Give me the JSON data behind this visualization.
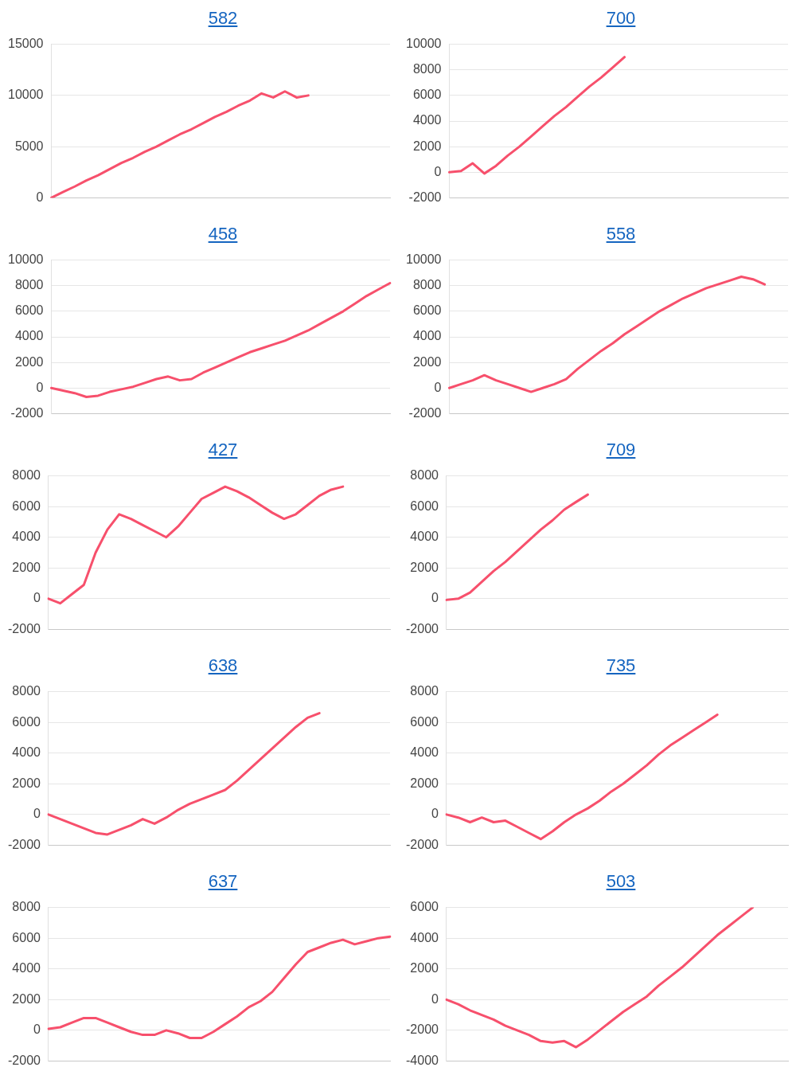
{
  "chart_data": [
    {
      "type": "line",
      "title": "582",
      "categories": [
        null,
        null,
        null,
        null,
        null,
        null,
        null,
        null,
        null,
        null,
        null,
        null,
        null,
        null,
        null,
        null,
        null,
        null,
        null,
        null,
        null,
        null,
        null,
        null,
        null,
        null,
        null,
        null,
        null,
        null
      ],
      "series": [
        {
          "color": "#f7506c",
          "values": [
            0,
            560,
            1100,
            1700,
            2200,
            2800,
            3400,
            3900,
            4500,
            5000,
            5600,
            6200,
            6700,
            7300,
            7900,
            8400,
            9000,
            9500,
            10200,
            9800,
            10400,
            9800,
            10000,
            null,
            null,
            null,
            null,
            null,
            null,
            null
          ]
        }
      ],
      "ylim": [
        0,
        15000
      ],
      "yticks": [
        0,
        5000,
        10000,
        15000
      ],
      "grid": "y",
      "tick_labels": "y",
      "marker": "none",
      "line_style": "solid"
    },
    {
      "type": "line",
      "title": "700",
      "categories": [
        null,
        null,
        null,
        null,
        null,
        null,
        null,
        null,
        null,
        null,
        null,
        null,
        null,
        null,
        null,
        null,
        null,
        null,
        null,
        null,
        null,
        null,
        null,
        null,
        null,
        null,
        null,
        null,
        null,
        null
      ],
      "series": [
        {
          "color": "#f7506c",
          "values": [
            0,
            100,
            700,
            -100,
            500,
            1300,
            2000,
            2800,
            3600,
            4400,
            5100,
            5900,
            6700,
            7400,
            8200,
            9000,
            null,
            null,
            null,
            null,
            null,
            null,
            null,
            null,
            null,
            null,
            null,
            null,
            null,
            null
          ]
        }
      ],
      "ylim": [
        -2000,
        10000
      ],
      "yticks": [
        -2000,
        0,
        2000,
        4000,
        6000,
        8000,
        10000
      ],
      "grid": "y",
      "tick_labels": "y",
      "marker": "none",
      "line_style": "solid"
    },
    {
      "type": "line",
      "title": "458",
      "categories": [
        null,
        null,
        null,
        null,
        null,
        null,
        null,
        null,
        null,
        null,
        null,
        null,
        null,
        null,
        null,
        null,
        null,
        null,
        null,
        null,
        null,
        null,
        null,
        null,
        null,
        null,
        null,
        null,
        null,
        null
      ],
      "series": [
        {
          "color": "#f7506c",
          "values": [
            0,
            -200,
            -400,
            -700,
            -600,
            -300,
            -100,
            100,
            400,
            700,
            900,
            600,
            700,
            1200,
            1600,
            2000,
            2400,
            2800,
            3100,
            3400,
            3700,
            4100,
            4500,
            5000,
            5500,
            6000,
            6600,
            7200,
            7700,
            8200
          ]
        }
      ],
      "ylim": [
        -2000,
        10000
      ],
      "yticks": [
        -2000,
        0,
        2000,
        4000,
        6000,
        8000,
        10000
      ],
      "grid": "y",
      "tick_labels": "y",
      "marker": "none",
      "line_style": "solid"
    },
    {
      "type": "line",
      "title": "558",
      "categories": [
        null,
        null,
        null,
        null,
        null,
        null,
        null,
        null,
        null,
        null,
        null,
        null,
        null,
        null,
        null,
        null,
        null,
        null,
        null,
        null,
        null,
        null,
        null,
        null,
        null,
        null,
        null,
        null,
        null,
        null
      ],
      "series": [
        {
          "color": "#f7506c",
          "values": [
            0,
            300,
            600,
            1000,
            600,
            300,
            0,
            -300,
            0,
            300,
            700,
            1500,
            2200,
            2900,
            3500,
            4200,
            4800,
            5400,
            6000,
            6500,
            7000,
            7400,
            7800,
            8100,
            8400,
            8700,
            8500,
            8100,
            null,
            null
          ]
        }
      ],
      "ylim": [
        -2000,
        10000
      ],
      "yticks": [
        -2000,
        0,
        2000,
        4000,
        6000,
        8000,
        10000
      ],
      "grid": "y",
      "tick_labels": "y",
      "marker": "none",
      "line_style": "solid"
    },
    {
      "type": "line",
      "title": "427",
      "categories": [
        null,
        null,
        null,
        null,
        null,
        null,
        null,
        null,
        null,
        null,
        null,
        null,
        null,
        null,
        null,
        null,
        null,
        null,
        null,
        null,
        null,
        null,
        null,
        null,
        null,
        null,
        null,
        null,
        null,
        null
      ],
      "series": [
        {
          "color": "#f7506c",
          "values": [
            0,
            -300,
            300,
            900,
            3000,
            4500,
            5500,
            5200,
            4800,
            4400,
            4000,
            4700,
            5600,
            6500,
            6900,
            7300,
            7000,
            6600,
            6100,
            5600,
            5200,
            5500,
            6100,
            6700,
            7100,
            7300,
            null,
            null,
            null,
            null
          ]
        }
      ],
      "ylim": [
        -2000,
        8000
      ],
      "yticks": [
        -2000,
        0,
        2000,
        4000,
        6000,
        8000
      ],
      "grid": "y",
      "tick_labels": "y",
      "marker": "none",
      "line_style": "solid"
    },
    {
      "type": "line",
      "title": "709",
      "categories": [
        null,
        null,
        null,
        null,
        null,
        null,
        null,
        null,
        null,
        null,
        null,
        null,
        null,
        null,
        null,
        null,
        null,
        null,
        null,
        null,
        null,
        null,
        null,
        null,
        null,
        null,
        null,
        null,
        null,
        null
      ],
      "series": [
        {
          "color": "#f7506c",
          "values": [
            -80,
            0,
            400,
            1100,
            1800,
            2400,
            3100,
            3800,
            4500,
            5100,
            5800,
            6300,
            6780,
            null,
            null,
            null,
            null,
            null,
            null,
            null,
            null,
            null,
            null,
            null,
            null,
            null,
            null,
            null,
            null,
            null
          ]
        }
      ],
      "ylim": [
        -2000,
        8000
      ],
      "yticks": [
        -2000,
        0,
        2000,
        4000,
        6000,
        8000
      ],
      "grid": "y",
      "tick_labels": "y",
      "marker": "none",
      "line_style": "solid"
    },
    {
      "type": "line",
      "title": "638",
      "categories": [
        null,
        null,
        null,
        null,
        null,
        null,
        null,
        null,
        null,
        null,
        null,
        null,
        null,
        null,
        null,
        null,
        null,
        null,
        null,
        null,
        null,
        null,
        null,
        null,
        null,
        null,
        null,
        null,
        null,
        null
      ],
      "series": [
        {
          "color": "#f7506c",
          "values": [
            0,
            -300,
            -600,
            -900,
            -1200,
            -1300,
            -1000,
            -700,
            -300,
            -600,
            -200,
            300,
            700,
            1000,
            1300,
            1600,
            2200,
            2900,
            3600,
            4300,
            5000,
            5700,
            6300,
            6600,
            null,
            null,
            null,
            null,
            null,
            null
          ]
        }
      ],
      "ylim": [
        -2000,
        8000
      ],
      "yticks": [
        -2000,
        0,
        2000,
        4000,
        6000,
        8000
      ],
      "grid": "y",
      "tick_labels": "y",
      "marker": "none",
      "line_style": "solid"
    },
    {
      "type": "line",
      "title": "735",
      "categories": [
        null,
        null,
        null,
        null,
        null,
        null,
        null,
        null,
        null,
        null,
        null,
        null,
        null,
        null,
        null,
        null,
        null,
        null,
        null,
        null,
        null,
        null,
        null,
        null,
        null,
        null,
        null,
        null,
        null,
        null
      ],
      "series": [
        {
          "color": "#f7506c",
          "values": [
            0,
            -200,
            -500,
            -200,
            -500,
            -400,
            -800,
            -1200,
            -1600,
            -1100,
            -500,
            0,
            400,
            900,
            1500,
            2000,
            2600,
            3200,
            3900,
            4500,
            5000,
            5500,
            6000,
            6500,
            null,
            null,
            null,
            null,
            null,
            null
          ]
        }
      ],
      "ylim": [
        -2000,
        8000
      ],
      "yticks": [
        -2000,
        0,
        2000,
        4000,
        6000,
        8000
      ],
      "grid": "y",
      "tick_labels": "y",
      "marker": "none",
      "line_style": "solid"
    },
    {
      "type": "line",
      "title": "637",
      "categories": [
        null,
        null,
        null,
        null,
        null,
        null,
        null,
        null,
        null,
        null,
        null,
        null,
        null,
        null,
        null,
        null,
        null,
        null,
        null,
        null,
        null,
        null,
        null,
        null,
        null,
        null,
        null,
        null,
        null,
        null
      ],
      "series": [
        {
          "color": "#f7506c",
          "values": [
            100,
            200,
            500,
            800,
            800,
            500,
            200,
            -100,
            -300,
            -300,
            0,
            -200,
            -500,
            -500,
            -100,
            400,
            900,
            1500,
            1900,
            2500,
            3400,
            4300,
            5100,
            5400,
            5700,
            5900,
            5600,
            5800,
            6000,
            6100
          ]
        }
      ],
      "ylim": [
        -2000,
        8000
      ],
      "yticks": [
        -2000,
        0,
        2000,
        4000,
        6000,
        8000
      ],
      "grid": "y",
      "tick_labels": "y",
      "marker": "none",
      "line_style": "solid"
    },
    {
      "type": "line",
      "title": "503",
      "categories": [
        null,
        null,
        null,
        null,
        null,
        null,
        null,
        null,
        null,
        null,
        null,
        null,
        null,
        null,
        null,
        null,
        null,
        null,
        null,
        null,
        null,
        null,
        null,
        null,
        null,
        null,
        null,
        null,
        null,
        null
      ],
      "series": [
        {
          "color": "#f7506c",
          "values": [
            0,
            -300,
            -700,
            -1000,
            -1300,
            -1700,
            -2000,
            -2300,
            -2700,
            -2800,
            -2700,
            -3100,
            -2600,
            -2000,
            -1400,
            -800,
            -300,
            200,
            900,
            1500,
            2100,
            2800,
            3500,
            4200,
            4800,
            5400,
            6000,
            null,
            null,
            null
          ]
        }
      ],
      "ylim": [
        -4000,
        6000
      ],
      "yticks": [
        -4000,
        -2000,
        0,
        2000,
        4000,
        6000
      ],
      "grid": "y",
      "tick_labels": "y",
      "marker": "none",
      "line_style": "solid"
    }
  ]
}
